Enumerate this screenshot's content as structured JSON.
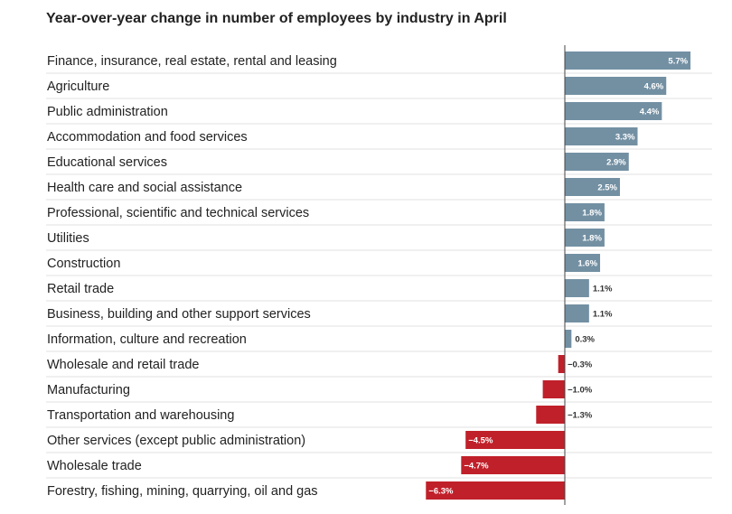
{
  "chart_data": {
    "type": "bar",
    "orientation": "horizontal",
    "title": "Year-over-year change in number of employees by industry in April",
    "xlabel": "",
    "ylabel": "",
    "unit": "%",
    "categories": [
      "Finance, insurance, real estate, rental and leasing",
      "Agriculture",
      "Public administration",
      "Accommodation and food services",
      "Educational services",
      "Health care and social assistance",
      "Professional, scientific and technical services",
      "Utilities",
      "Construction",
      "Retail trade",
      "Business, building and other support services",
      "Information, culture and recreation",
      "Wholesale and retail trade",
      "Manufacturing",
      "Transportation and warehousing",
      "Other services (except public administration)",
      "Wholesale trade",
      "Forestry, fishing, mining, quarrying, oil and gas"
    ],
    "values": [
      5.7,
      4.6,
      4.4,
      3.3,
      2.9,
      2.5,
      1.8,
      1.8,
      1.6,
      1.1,
      1.1,
      0.3,
      -0.3,
      -1.0,
      -1.3,
      -4.5,
      -4.7,
      -6.3
    ],
    "labels": [
      "5.7%",
      "4.6%",
      "4.4%",
      "3.3%",
      "2.9%",
      "2.5%",
      "1.8%",
      "1.8%",
      "1.6%",
      "1.1%",
      "1.1%",
      "0.3%",
      "−0.3%",
      "−1.0%",
      "−1.3%",
      "−4.5%",
      "−4.7%",
      "−6.3%"
    ],
    "xlim": [
      -6.3,
      5.7
    ],
    "grid": false,
    "legend": "none",
    "colors": {
      "positive": "#7390a3",
      "negative": "#c0202a",
      "separator": "#e2e2e2",
      "axis": "#444444"
    }
  }
}
